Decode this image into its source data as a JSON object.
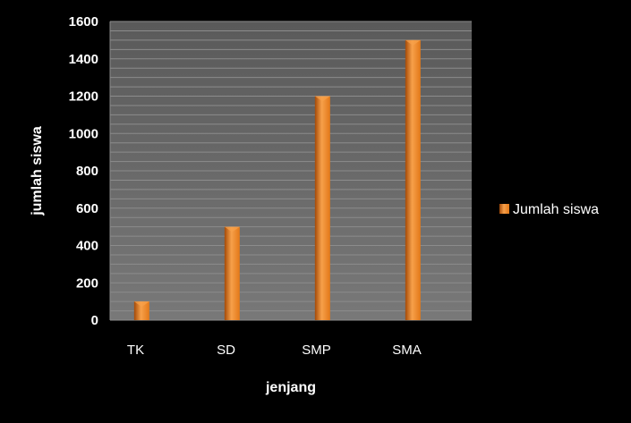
{
  "colors": {
    "background": "#000000",
    "plot_area": "#6a6a6a",
    "gridline": "#8c8c8c",
    "bar_light": "#f7a04a",
    "bar_mid": "#e27818",
    "bar_dark": "#a44a08",
    "text": "#ffffff"
  },
  "chart_data": {
    "type": "bar",
    "categories": [
      "TK",
      "SD",
      "SMP",
      "SMA"
    ],
    "series": [
      {
        "name": "Jumlah siswa",
        "values": [
          100,
          500,
          1200,
          1500
        ]
      }
    ],
    "xlabel": "jenjang",
    "ylabel": "jumlah siswa",
    "ylim": [
      0,
      1600
    ],
    "yticks": [
      0,
      200,
      400,
      600,
      800,
      1000,
      1200,
      1400,
      1600
    ],
    "grid": true,
    "legend_position": "right"
  }
}
